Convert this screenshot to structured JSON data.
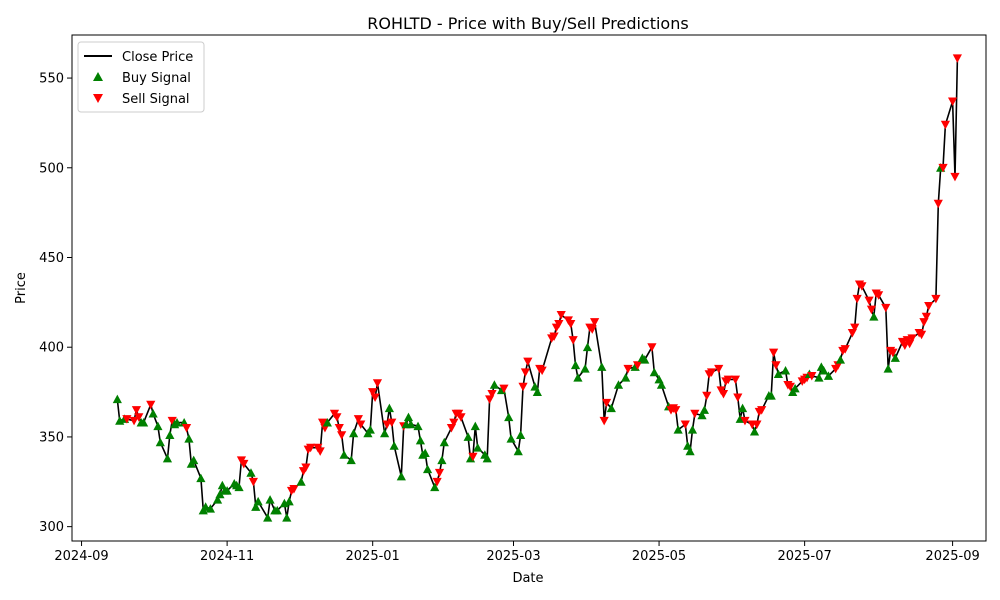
{
  "chart_data": {
    "type": "line",
    "title": "ROHLTD - Price with Buy/Sell Predictions",
    "xlabel": "Date",
    "ylabel": "Price",
    "xlim": [
      "2024-08-28",
      "2025-09-15"
    ],
    "ylim": [
      292,
      574
    ],
    "x_ticks": [
      {
        "date": "2024-09-01",
        "label": "2024-09"
      },
      {
        "date": "2024-11-01",
        "label": "2024-11"
      },
      {
        "date": "2025-01-01",
        "label": "2025-01"
      },
      {
        "date": "2025-03-01",
        "label": "2025-03"
      },
      {
        "date": "2025-05-01",
        "label": "2025-05"
      },
      {
        "date": "2025-07-01",
        "label": "2025-07"
      },
      {
        "date": "2025-09-01",
        "label": "2025-09"
      }
    ],
    "y_ticks": [
      300,
      350,
      400,
      450,
      500,
      550
    ],
    "legend_position": "upper-left",
    "series": [
      {
        "name": "Close Price",
        "color": "#000000",
        "marker": "line"
      },
      {
        "name": "Buy Signal",
        "color": "#008000",
        "marker": "triangle-up"
      },
      {
        "name": "Sell Signal",
        "color": "#ff0000",
        "marker": "triangle-down"
      }
    ],
    "points": [
      [
        "2024-09-16",
        371,
        "buy"
      ],
      [
        "2024-09-17",
        359,
        "buy"
      ],
      [
        "2024-09-19",
        360,
        "buy"
      ],
      [
        "2024-09-20",
        360,
        "sell"
      ],
      [
        "2024-09-23",
        359,
        "sell"
      ],
      [
        "2024-09-24",
        365,
        "sell"
      ],
      [
        "2024-09-25",
        361,
        "sell"
      ],
      [
        "2024-09-26",
        358,
        "buy"
      ],
      [
        "2024-09-27",
        358,
        "buy"
      ],
      [
        "2024-09-30",
        368,
        "sell"
      ],
      [
        "2024-10-01",
        363,
        "buy"
      ],
      [
        "2024-10-03",
        356,
        "buy"
      ],
      [
        "2024-10-04",
        347,
        "buy"
      ],
      [
        "2024-10-07",
        338,
        "buy"
      ],
      [
        "2024-10-08",
        351,
        "buy"
      ],
      [
        "2024-10-09",
        359,
        "sell"
      ],
      [
        "2024-10-10",
        357,
        "buy"
      ],
      [
        "2024-10-11",
        358,
        "buy"
      ],
      [
        "2024-10-14",
        358,
        "buy"
      ],
      [
        "2024-10-15",
        355,
        "sell"
      ],
      [
        "2024-10-16",
        349,
        "buy"
      ],
      [
        "2024-10-17",
        335,
        "buy"
      ],
      [
        "2024-10-18",
        337,
        "buy"
      ],
      [
        "2024-10-21",
        327,
        "buy"
      ],
      [
        "2024-10-22",
        309,
        "buy"
      ],
      [
        "2024-10-23",
        311,
        "buy"
      ],
      [
        "2024-10-25",
        310,
        "buy"
      ],
      [
        "2024-10-28",
        315,
        "buy"
      ],
      [
        "2024-10-29",
        318,
        "buy"
      ],
      [
        "2024-10-30",
        323,
        "buy"
      ],
      [
        "2024-10-31",
        320,
        "buy"
      ],
      [
        "2024-11-01",
        320,
        "buy"
      ],
      [
        "2024-11-04",
        324,
        "buy"
      ],
      [
        "2024-11-05",
        323,
        "buy"
      ],
      [
        "2024-11-06",
        322,
        "buy"
      ],
      [
        "2024-11-07",
        337,
        "sell"
      ],
      [
        "2024-11-08",
        335,
        "sell"
      ],
      [
        "2024-11-11",
        330,
        "buy"
      ],
      [
        "2024-11-12",
        325,
        "sell"
      ],
      [
        "2024-11-13",
        311,
        "buy"
      ],
      [
        "2024-11-14",
        314,
        "buy"
      ],
      [
        "2024-11-18",
        305,
        "buy"
      ],
      [
        "2024-11-19",
        315,
        "buy"
      ],
      [
        "2024-11-21",
        309,
        "buy"
      ],
      [
        "2024-11-22",
        309,
        "buy"
      ],
      [
        "2024-11-25",
        313,
        "buy"
      ],
      [
        "2024-11-26",
        305,
        "buy"
      ],
      [
        "2024-11-27",
        314,
        "buy"
      ],
      [
        "2024-11-28",
        320,
        "sell"
      ],
      [
        "2024-11-29",
        321,
        "sell"
      ],
      [
        "2024-12-02",
        325,
        "buy"
      ],
      [
        "2024-12-03",
        331,
        "sell"
      ],
      [
        "2024-12-04",
        333,
        "sell"
      ],
      [
        "2024-12-05",
        343,
        "sell"
      ],
      [
        "2024-12-06",
        344,
        "sell"
      ],
      [
        "2024-12-09",
        344,
        "sell"
      ],
      [
        "2024-12-10",
        342,
        "sell"
      ],
      [
        "2024-12-11",
        358,
        "sell"
      ],
      [
        "2024-12-12",
        355,
        "sell"
      ],
      [
        "2024-12-13",
        358,
        "buy"
      ],
      [
        "2024-12-16",
        363,
        "sell"
      ],
      [
        "2024-12-17",
        361,
        "sell"
      ],
      [
        "2024-12-18",
        355,
        "sell"
      ],
      [
        "2024-12-19",
        351,
        "sell"
      ],
      [
        "2024-12-20",
        340,
        "buy"
      ],
      [
        "2024-12-23",
        337,
        "buy"
      ],
      [
        "2024-12-24",
        352,
        "buy"
      ],
      [
        "2024-12-26",
        360,
        "sell"
      ],
      [
        "2024-12-27",
        357,
        "sell"
      ],
      [
        "2024-12-30",
        352,
        "buy"
      ],
      [
        "2024-12-31",
        354,
        "buy"
      ],
      [
        "2025-01-01",
        375,
        "sell"
      ],
      [
        "2025-01-02",
        372,
        "sell"
      ],
      [
        "2025-01-03",
        380,
        "sell"
      ],
      [
        "2025-01-06",
        352,
        "buy"
      ],
      [
        "2025-01-07",
        357,
        "sell"
      ],
      [
        "2025-01-08",
        366,
        "buy"
      ],
      [
        "2025-01-09",
        358,
        "sell"
      ],
      [
        "2025-01-10",
        345,
        "buy"
      ],
      [
        "2025-01-13",
        328,
        "buy"
      ],
      [
        "2025-01-14",
        356,
        "sell"
      ],
      [
        "2025-01-15",
        357,
        "buy"
      ],
      [
        "2025-01-16",
        361,
        "buy"
      ],
      [
        "2025-01-17",
        357,
        "buy"
      ],
      [
        "2025-01-20",
        356,
        "buy"
      ],
      [
        "2025-01-21",
        348,
        "buy"
      ],
      [
        "2025-01-22",
        340,
        "buy"
      ],
      [
        "2025-01-23",
        341,
        "buy"
      ],
      [
        "2025-01-24",
        332,
        "buy"
      ],
      [
        "2025-01-27",
        322,
        "buy"
      ],
      [
        "2025-01-28",
        325,
        "sell"
      ],
      [
        "2025-01-29",
        330,
        "sell"
      ],
      [
        "2025-01-30",
        337,
        "buy"
      ],
      [
        "2025-01-31",
        347,
        "buy"
      ],
      [
        "2025-02-03",
        355,
        "sell"
      ],
      [
        "2025-02-04",
        358,
        "sell"
      ],
      [
        "2025-02-05",
        363,
        "sell"
      ],
      [
        "2025-02-06",
        363,
        "sell"
      ],
      [
        "2025-02-07",
        361,
        "sell"
      ],
      [
        "2025-02-10",
        350,
        "buy"
      ],
      [
        "2025-02-11",
        338,
        "buy"
      ],
      [
        "2025-02-12",
        339,
        "sell"
      ],
      [
        "2025-02-13",
        356,
        "buy"
      ],
      [
        "2025-02-14",
        344,
        "buy"
      ],
      [
        "2025-02-17",
        340,
        "buy"
      ],
      [
        "2025-02-18",
        338,
        "buy"
      ],
      [
        "2025-02-19",
        371,
        "sell"
      ],
      [
        "2025-02-20",
        374,
        "sell"
      ],
      [
        "2025-02-21",
        379,
        "buy"
      ],
      [
        "2025-02-24",
        376,
        "buy"
      ],
      [
        "2025-02-25",
        377,
        "sell"
      ],
      [
        "2025-02-27",
        361,
        "buy"
      ],
      [
        "2025-02-28",
        349,
        "buy"
      ],
      [
        "2025-03-03",
        342,
        "buy"
      ],
      [
        "2025-03-04",
        351,
        "buy"
      ],
      [
        "2025-03-05",
        378,
        "sell"
      ],
      [
        "2025-03-06",
        386,
        "sell"
      ],
      [
        "2025-03-07",
        392,
        "sell"
      ],
      [
        "2025-03-10",
        378,
        "buy"
      ],
      [
        "2025-03-11",
        375,
        "buy"
      ],
      [
        "2025-03-12",
        388,
        "sell"
      ],
      [
        "2025-03-13",
        387,
        "sell"
      ],
      [
        "2025-03-17",
        405,
        "sell"
      ],
      [
        "2025-03-18",
        406,
        "sell"
      ],
      [
        "2025-03-19",
        411,
        "sell"
      ],
      [
        "2025-03-20",
        413,
        "sell"
      ],
      [
        "2025-03-21",
        418,
        "sell"
      ],
      [
        "2025-03-24",
        415,
        "sell"
      ],
      [
        "2025-03-25",
        413,
        "sell"
      ],
      [
        "2025-03-26",
        404,
        "sell"
      ],
      [
        "2025-03-27",
        390,
        "buy"
      ],
      [
        "2025-03-28",
        383,
        "buy"
      ],
      [
        "2025-03-31",
        388,
        "buy"
      ],
      [
        "2025-04-01",
        400,
        "buy"
      ],
      [
        "2025-04-02",
        411,
        "sell"
      ],
      [
        "2025-04-03",
        410,
        "sell"
      ],
      [
        "2025-04-04",
        414,
        "sell"
      ],
      [
        "2025-04-07",
        389,
        "buy"
      ],
      [
        "2025-04-08",
        359,
        "sell"
      ],
      [
        "2025-04-09",
        369,
        "sell"
      ],
      [
        "2025-04-11",
        366,
        "buy"
      ],
      [
        "2025-04-14",
        379,
        "buy"
      ],
      [
        "2025-04-17",
        383,
        "buy"
      ],
      [
        "2025-04-18",
        388,
        "sell"
      ],
      [
        "2025-04-21",
        389,
        "buy"
      ],
      [
        "2025-04-22",
        390,
        "sell"
      ],
      [
        "2025-04-24",
        394,
        "buy"
      ],
      [
        "2025-04-25",
        393,
        "buy"
      ],
      [
        "2025-04-28",
        400,
        "sell"
      ],
      [
        "2025-04-29",
        386,
        "buy"
      ],
      [
        "2025-05-01",
        382,
        "buy"
      ],
      [
        "2025-05-02",
        379,
        "buy"
      ],
      [
        "2025-05-05",
        367,
        "buy"
      ],
      [
        "2025-05-06",
        365,
        "sell"
      ],
      [
        "2025-05-07",
        366,
        "sell"
      ],
      [
        "2025-05-08",
        365,
        "sell"
      ],
      [
        "2025-05-09",
        354,
        "buy"
      ],
      [
        "2025-05-12",
        357,
        "sell"
      ],
      [
        "2025-05-13",
        345,
        "buy"
      ],
      [
        "2025-05-14",
        342,
        "buy"
      ],
      [
        "2025-05-15",
        354,
        "buy"
      ],
      [
        "2025-05-16",
        363,
        "sell"
      ],
      [
        "2025-05-19",
        362,
        "buy"
      ],
      [
        "2025-05-20",
        365,
        "buy"
      ],
      [
        "2025-05-21",
        373,
        "sell"
      ],
      [
        "2025-05-22",
        385,
        "sell"
      ],
      [
        "2025-05-23",
        386,
        "sell"
      ],
      [
        "2025-05-26",
        388,
        "sell"
      ],
      [
        "2025-05-27",
        376,
        "sell"
      ],
      [
        "2025-05-28",
        374,
        "sell"
      ],
      [
        "2025-05-29",
        381,
        "sell"
      ],
      [
        "2025-05-30",
        382,
        "sell"
      ],
      [
        "2025-06-02",
        382,
        "sell"
      ],
      [
        "2025-06-03",
        372,
        "sell"
      ],
      [
        "2025-06-04",
        360,
        "buy"
      ],
      [
        "2025-06-05",
        366,
        "buy"
      ],
      [
        "2025-06-06",
        359,
        "sell"
      ],
      [
        "2025-06-09",
        357,
        "sell"
      ],
      [
        "2025-06-10",
        353,
        "buy"
      ],
      [
        "2025-06-11",
        357,
        "sell"
      ],
      [
        "2025-06-12",
        364,
        "sell"
      ],
      [
        "2025-06-13",
        365,
        "sell"
      ],
      [
        "2025-06-16",
        373,
        "buy"
      ],
      [
        "2025-06-17",
        373,
        "buy"
      ],
      [
        "2025-06-18",
        397,
        "sell"
      ],
      [
        "2025-06-19",
        390,
        "sell"
      ],
      [
        "2025-06-20",
        385,
        "buy"
      ],
      [
        "2025-06-23",
        387,
        "buy"
      ],
      [
        "2025-06-24",
        379,
        "sell"
      ],
      [
        "2025-06-25",
        378,
        "sell"
      ],
      [
        "2025-06-26",
        375,
        "buy"
      ],
      [
        "2025-06-27",
        377,
        "buy"
      ],
      [
        "2025-06-30",
        381,
        "sell"
      ],
      [
        "2025-07-01",
        382,
        "sell"
      ],
      [
        "2025-07-02",
        383,
        "sell"
      ],
      [
        "2025-07-03",
        385,
        "buy"
      ],
      [
        "2025-07-04",
        384,
        "sell"
      ],
      [
        "2025-07-07",
        383,
        "buy"
      ],
      [
        "2025-07-08",
        389,
        "buy"
      ],
      [
        "2025-07-09",
        387,
        "buy"
      ],
      [
        "2025-07-11",
        384,
        "buy"
      ],
      [
        "2025-07-14",
        388,
        "sell"
      ],
      [
        "2025-07-15",
        390,
        "sell"
      ],
      [
        "2025-07-16",
        393,
        "buy"
      ],
      [
        "2025-07-17",
        398,
        "sell"
      ],
      [
        "2025-07-18",
        399,
        "sell"
      ],
      [
        "2025-07-21",
        408,
        "sell"
      ],
      [
        "2025-07-22",
        411,
        "sell"
      ],
      [
        "2025-07-23",
        427,
        "sell"
      ],
      [
        "2025-07-24",
        435,
        "sell"
      ],
      [
        "2025-07-25",
        434,
        "sell"
      ],
      [
        "2025-07-28",
        426,
        "sell"
      ],
      [
        "2025-07-29",
        421,
        "sell"
      ],
      [
        "2025-07-30",
        417,
        "buy"
      ],
      [
        "2025-07-31",
        430,
        "sell"
      ],
      [
        "2025-08-01",
        429,
        "sell"
      ],
      [
        "2025-08-04",
        422,
        "sell"
      ],
      [
        "2025-08-05",
        388,
        "buy"
      ],
      [
        "2025-08-06",
        398,
        "sell"
      ],
      [
        "2025-08-07",
        397,
        "sell"
      ],
      [
        "2025-08-08",
        394,
        "buy"
      ],
      [
        "2025-08-11",
        403,
        "sell"
      ],
      [
        "2025-08-12",
        401,
        "sell"
      ],
      [
        "2025-08-13",
        404,
        "sell"
      ],
      [
        "2025-08-14",
        402,
        "sell"
      ],
      [
        "2025-08-15",
        405,
        "sell"
      ],
      [
        "2025-08-18",
        408,
        "sell"
      ],
      [
        "2025-08-19",
        407,
        "sell"
      ],
      [
        "2025-08-20",
        414,
        "sell"
      ],
      [
        "2025-08-21",
        417,
        "sell"
      ],
      [
        "2025-08-22",
        423,
        "sell"
      ],
      [
        "2025-08-25",
        427,
        "sell"
      ],
      [
        "2025-08-26",
        480,
        "sell"
      ],
      [
        "2025-08-27",
        500,
        "buy"
      ],
      [
        "2025-08-28",
        500,
        "sell"
      ],
      [
        "2025-08-29",
        524,
        "sell"
      ],
      [
        "2025-09-01",
        537,
        "sell"
      ],
      [
        "2025-09-02",
        495,
        "sell"
      ],
      [
        "2025-09-03",
        561,
        "sell"
      ]
    ]
  }
}
